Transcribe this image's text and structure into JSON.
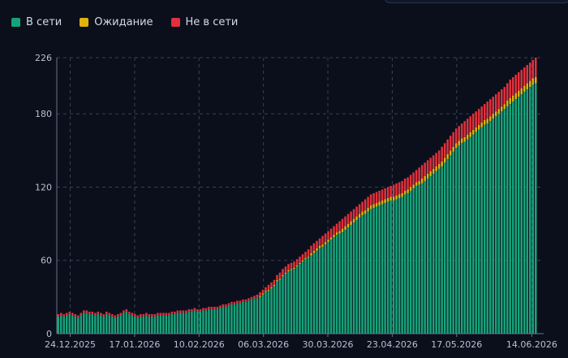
{
  "legend": [
    {
      "label": "В сети",
      "color": "#16a37a"
    },
    {
      "label": "Ожидание",
      "color": "#e0b10f"
    },
    {
      "label": "Не в сети",
      "color": "#e0313d"
    }
  ],
  "chart_data": {
    "type": "bar",
    "stacked": true,
    "title": "",
    "xlabel": "",
    "ylabel": "",
    "ylim": [
      0,
      226
    ],
    "y_ticks": [
      "0",
      "60",
      "120",
      "180",
      "226"
    ],
    "x_ticks": [
      "24.12.2025",
      "17.01.2026",
      "10.02.2026",
      "06.03.2026",
      "30.03.2026",
      "23.04.2026",
      "17.05.2026",
      "14.06.2026"
    ],
    "x_range": [
      "19.12.2025",
      "16.06.2026"
    ],
    "grid": true,
    "legend_position": "top-left",
    "series": [
      {
        "name": "В сети",
        "color": "#16a37a"
      },
      {
        "name": "Ожидание",
        "color": "#e0b10f"
      },
      {
        "name": "Не в сети",
        "color": "#e0313d"
      }
    ],
    "totals": [
      16,
      17,
      16,
      17,
      18,
      17,
      16,
      15,
      17,
      19,
      19,
      18,
      18,
      17,
      18,
      17,
      16,
      18,
      17,
      16,
      15,
      16,
      17,
      19,
      20,
      18,
      17,
      16,
      15,
      16,
      16,
      17,
      16,
      16,
      16,
      17,
      17,
      17,
      17,
      17,
      18,
      18,
      19,
      19,
      19,
      19,
      20,
      20,
      21,
      20,
      20,
      21,
      21,
      22,
      22,
      22,
      22,
      23,
      24,
      24,
      25,
      26,
      26,
      27,
      27,
      28,
      28,
      29,
      30,
      31,
      32,
      34,
      36,
      38,
      40,
      42,
      44,
      48,
      50,
      53,
      55,
      57,
      58,
      59,
      61,
      63,
      65,
      67,
      69,
      72,
      74,
      76,
      78,
      80,
      82,
      84,
      86,
      88,
      90,
      92,
      94,
      96,
      98,
      100,
      102,
      104,
      106,
      108,
      110,
      112,
      114,
      115,
      116,
      117,
      118,
      119,
      120,
      121,
      122,
      123,
      124,
      125,
      127,
      128,
      130,
      132,
      134,
      136,
      138,
      140,
      142,
      144,
      146,
      148,
      150,
      153,
      156,
      159,
      162,
      165,
      168,
      170,
      172,
      174,
      176,
      178,
      180,
      182,
      184,
      186,
      188,
      190,
      192,
      194,
      196,
      198,
      200,
      202,
      205,
      208,
      210,
      212,
      214,
      216,
      218,
      220,
      222,
      224,
      226
    ],
    "waiting": [
      0,
      0,
      0,
      0,
      0,
      0,
      0,
      0,
      0,
      0,
      0,
      0,
      0,
      0,
      0,
      0,
      0,
      0,
      0,
      0,
      0,
      0,
      0,
      0,
      0,
      0,
      0,
      0,
      0,
      0,
      0,
      0,
      0,
      0,
      0,
      0,
      0,
      0,
      0,
      0,
      0,
      0,
      0,
      0,
      0,
      0,
      0,
      0,
      0,
      0,
      0,
      0,
      0,
      0,
      0,
      0,
      0,
      0,
      0,
      0,
      0,
      0,
      0,
      0,
      0,
      0,
      0,
      0,
      0,
      0,
      0,
      1,
      1,
      1,
      1,
      1,
      1,
      1,
      1,
      1,
      1,
      1,
      1,
      1,
      1,
      1,
      1,
      1,
      1,
      2,
      2,
      2,
      2,
      2,
      2,
      2,
      2,
      2,
      2,
      2,
      3,
      3,
      3,
      3,
      3,
      3,
      3,
      3,
      3,
      3,
      3,
      3,
      3,
      3,
      3,
      3,
      3,
      3,
      3,
      3,
      3,
      3,
      3,
      3,
      3,
      3,
      3,
      3,
      4,
      4,
      4,
      4,
      4,
      4,
      4,
      4,
      4,
      4,
      4,
      4,
      4,
      4,
      4,
      4,
      4,
      4,
      4,
      4,
      4,
      4,
      4,
      4,
      4,
      4,
      4,
      4,
      4,
      4,
      5,
      5,
      5,
      5,
      5,
      5,
      5,
      5,
      5,
      5,
      5
    ],
    "offline": [
      2,
      2,
      2,
      2,
      2,
      2,
      2,
      2,
      2,
      2,
      2,
      2,
      2,
      2,
      2,
      2,
      2,
      2,
      2,
      2,
      2,
      2,
      2,
      2,
      2,
      2,
      2,
      2,
      2,
      2,
      2,
      2,
      2,
      2,
      2,
      2,
      2,
      2,
      2,
      2,
      2,
      2,
      2,
      2,
      2,
      2,
      2,
      2,
      2,
      2,
      2,
      2,
      2,
      2,
      2,
      2,
      2,
      2,
      2,
      2,
      2,
      2,
      2,
      2,
      2,
      2,
      2,
      2,
      2,
      2,
      3,
      3,
      3,
      3,
      4,
      4,
      4,
      4,
      5,
      5,
      5,
      5,
      5,
      5,
      5,
      5,
      5,
      5,
      6,
      6,
      6,
      6,
      6,
      7,
      7,
      7,
      7,
      7,
      7,
      8,
      8,
      8,
      8,
      8,
      8,
      8,
      8,
      8,
      9,
      9,
      9,
      9,
      9,
      9,
      9,
      9,
      9,
      9,
      10,
      10,
      10,
      10,
      10,
      10,
      10,
      10,
      10,
      11,
      11,
      11,
      11,
      11,
      11,
      11,
      11,
      12,
      12,
      12,
      12,
      12,
      12,
      12,
      12,
      13,
      13,
      13,
      13,
      13,
      13,
      13,
      13,
      14,
      14,
      14,
      14,
      14,
      14,
      14,
      14,
      15,
      15,
      15,
      15,
      15,
      15,
      15,
      15,
      15,
      16,
      16,
      16
    ]
  }
}
